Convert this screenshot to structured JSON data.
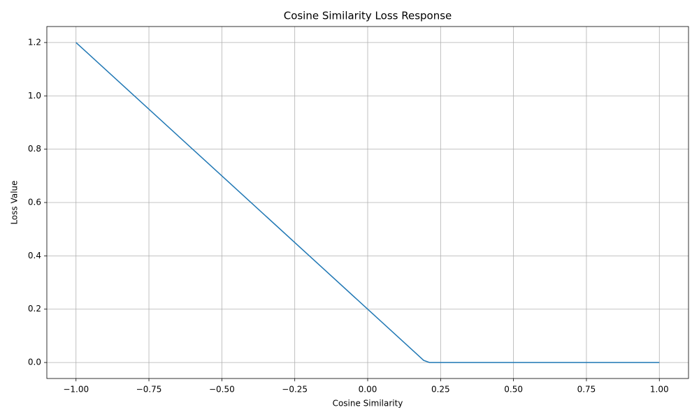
{
  "chart_data": {
    "type": "line",
    "title": "Cosine Similarity Loss Response",
    "xlabel": "Cosine Similarity",
    "ylabel": "Loss Value",
    "x": [
      -1.0,
      0.192,
      0.212,
      1.0
    ],
    "series": [
      {
        "color": "#1f77b4",
        "values": [
          1.2,
          0.008,
          0.0,
          0.0
        ]
      }
    ],
    "xlim": [
      -1.1,
      1.1
    ],
    "ylim": [
      -0.06,
      1.26
    ],
    "xticks": [
      {
        "value": -1.0,
        "label": "−1.00"
      },
      {
        "value": -0.75,
        "label": "−0.75"
      },
      {
        "value": -0.5,
        "label": "−0.50"
      },
      {
        "value": -0.25,
        "label": "−0.25"
      },
      {
        "value": 0,
        "label": "0.00"
      },
      {
        "value": 0.25,
        "label": "0.25"
      },
      {
        "value": 0.5,
        "label": "0.50"
      },
      {
        "value": 0.75,
        "label": "0.75"
      },
      {
        "value": 1.0,
        "label": "1.00"
      }
    ],
    "yticks": [
      {
        "value": 0,
        "label": "0.0"
      },
      0.2,
      0.4,
      0.6,
      0.8,
      {
        "value": 1.0,
        "label": "1.0"
      },
      1.2
    ],
    "grid": true
  }
}
